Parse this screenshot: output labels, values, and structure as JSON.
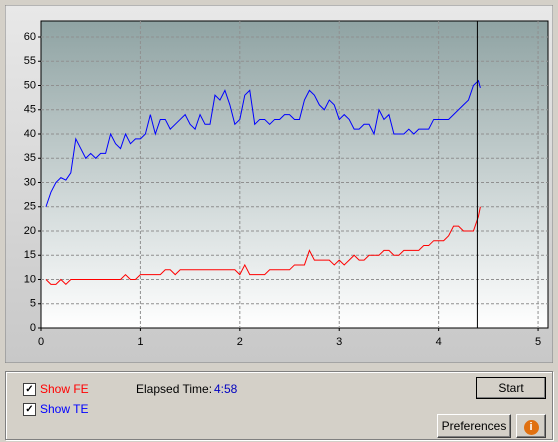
{
  "chart_data": {
    "type": "line",
    "x": [
      0.05,
      0.1,
      0.15,
      0.2,
      0.25,
      0.3,
      0.35,
      0.4,
      0.45,
      0.5,
      0.55,
      0.6,
      0.65,
      0.7,
      0.75,
      0.8,
      0.85,
      0.9,
      0.95,
      1.0,
      1.05,
      1.1,
      1.15,
      1.2,
      1.25,
      1.3,
      1.35,
      1.4,
      1.45,
      1.5,
      1.55,
      1.6,
      1.65,
      1.7,
      1.75,
      1.8,
      1.85,
      1.9,
      1.95,
      2.0,
      2.05,
      2.1,
      2.15,
      2.2,
      2.25,
      2.3,
      2.35,
      2.4,
      2.45,
      2.5,
      2.55,
      2.6,
      2.65,
      2.7,
      2.75,
      2.8,
      2.85,
      2.9,
      2.95,
      3.0,
      3.05,
      3.1,
      3.15,
      3.2,
      3.25,
      3.3,
      3.35,
      3.4,
      3.45,
      3.5,
      3.55,
      3.6,
      3.65,
      3.7,
      3.75,
      3.8,
      3.85,
      3.9,
      3.95,
      4.0,
      4.05,
      4.1,
      4.15,
      4.2,
      4.25,
      4.3,
      4.35,
      4.4,
      4.42
    ],
    "series": [
      {
        "name": "Show FE",
        "color": "#ff0000",
        "values": [
          10,
          9,
          9,
          10,
          9,
          10,
          10,
          10,
          10,
          10,
          10,
          10,
          10,
          10,
          10,
          10,
          11,
          10,
          10,
          11,
          11,
          11,
          11,
          11,
          12,
          12,
          11,
          12,
          12,
          12,
          12,
          12,
          12,
          12,
          12,
          12,
          12,
          12,
          12,
          11,
          13,
          11,
          11,
          11,
          11,
          12,
          12,
          12,
          12,
          12,
          13,
          13,
          13,
          16,
          14,
          14,
          14,
          14,
          13,
          14,
          13,
          14,
          15,
          14,
          14,
          15,
          15,
          15,
          16,
          16,
          15,
          15,
          16,
          16,
          16,
          16,
          17,
          17,
          18,
          18,
          18,
          19,
          21,
          21,
          20,
          20,
          20,
          23,
          25
        ]
      },
      {
        "name": "Show TE",
        "color": "#0000ff",
        "values": [
          25,
          28,
          30,
          31,
          30.5,
          32,
          39,
          37,
          35,
          36,
          35,
          36,
          36,
          40,
          38,
          37,
          40,
          38,
          39,
          39,
          40,
          44,
          40,
          43,
          43,
          41,
          42,
          43,
          44,
          42,
          41,
          44,
          42,
          42,
          48,
          47,
          49,
          46,
          42,
          43,
          48,
          49,
          42,
          43,
          43,
          42,
          43,
          43,
          44,
          44,
          43,
          43,
          47,
          49,
          48,
          46,
          45,
          47,
          46,
          43,
          44,
          43,
          41,
          41,
          42,
          42,
          40,
          45,
          43,
          44,
          40,
          40,
          40,
          41,
          40,
          41,
          41,
          41,
          43,
          43,
          43,
          43,
          44,
          45,
          46,
          47,
          50,
          51,
          49.5
        ]
      }
    ],
    "xlim": [
      0,
      5.1
    ],
    "xticks": [
      0,
      1,
      2,
      3,
      4,
      5
    ],
    "ylim": [
      0,
      63.3
    ],
    "yticks": [
      0,
      5,
      10,
      15,
      20,
      25,
      30,
      35,
      40,
      45,
      50,
      55,
      60
    ],
    "grid": true,
    "cursor_x": 4.39
  },
  "controls": {
    "elapsed_label": "Elapsed Time:",
    "elapsed_value": "4:58",
    "start": "Start",
    "preferences": "Preferences",
    "info": "i"
  }
}
